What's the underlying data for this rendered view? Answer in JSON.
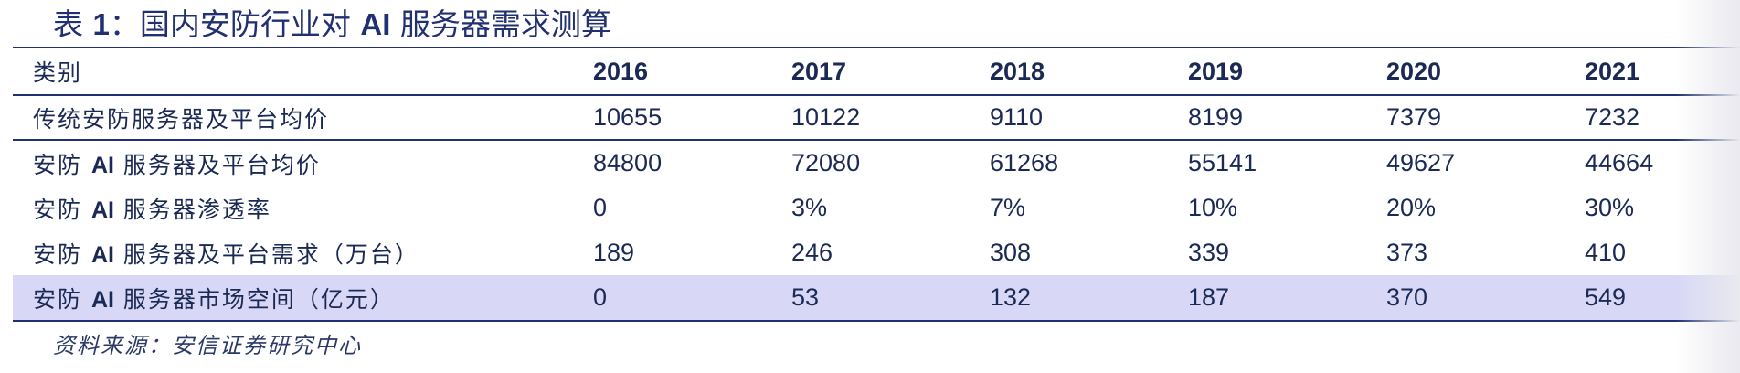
{
  "title": {
    "prefix": "表 ",
    "number": "1",
    "suffix": "：国内安防行业对 ",
    "ai": "AI",
    "rest": " 服务器需求测算"
  },
  "table": {
    "header": {
      "label": "类别",
      "years": [
        "2016",
        "2017",
        "2018",
        "2019",
        "2020",
        "2021"
      ]
    },
    "rows": [
      {
        "pre": "传统安防服务器及平台均价",
        "ai": "",
        "post": "",
        "values": [
          "10655",
          "10122",
          "9110",
          "8199",
          "7379",
          "7232"
        ]
      },
      {
        "pre": "安防 ",
        "ai": "AI",
        "post": " 服务器及平台均价",
        "values": [
          "84800",
          "72080",
          "61268",
          "55141",
          "49627",
          "44664"
        ]
      },
      {
        "pre": "安防 ",
        "ai": "AI",
        "post": " 服务器渗透率",
        "values": [
          "0",
          "3%",
          "7%",
          "10%",
          "20%",
          "30%"
        ]
      },
      {
        "pre": "安防 ",
        "ai": "AI",
        "post": " 服务器及平台需求（万台）",
        "values": [
          "189",
          "246",
          "308",
          "339",
          "373",
          "410"
        ]
      },
      {
        "pre": "安防 ",
        "ai": "AI",
        "post": " 服务器市场空间（亿元）",
        "values": [
          "0",
          "53",
          "132",
          "187",
          "370",
          "549"
        ]
      }
    ]
  },
  "source": "资料来源：安信证券研究中心",
  "colors": {
    "text": "#1b2a55",
    "rule": "#203070",
    "highlight_row": "#d8d8f6"
  }
}
